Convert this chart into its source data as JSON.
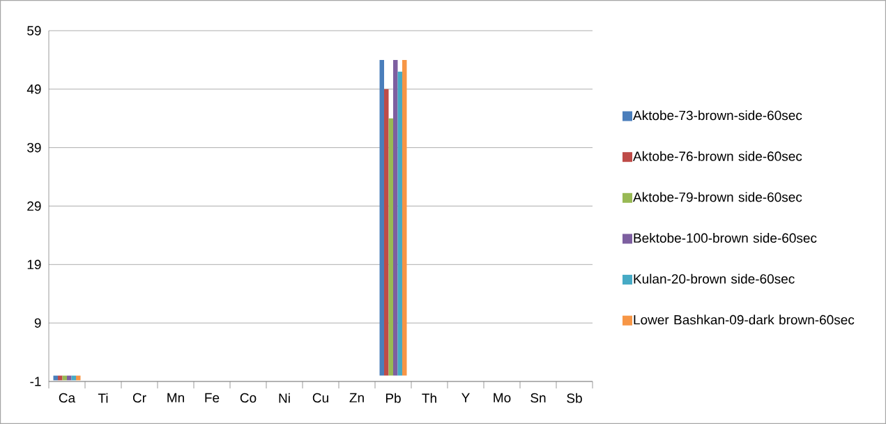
{
  "chart_data": {
    "type": "bar",
    "categories": [
      "Ca",
      "Ti",
      "Cr",
      "Mn",
      "Fe",
      "Co",
      "Ni",
      "Cu",
      "Zn",
      "Pb",
      "Th",
      "Y",
      "Mo",
      "Sn",
      "Sb"
    ],
    "series": [
      {
        "name": "Aktobe-73-brown-side-60sec",
        "color": "#4a7ebb",
        "values": [
          -0.8,
          null,
          null,
          null,
          null,
          null,
          null,
          null,
          null,
          54,
          null,
          null,
          null,
          null,
          null
        ]
      },
      {
        "name": "Aktobe-76-brown side-60sec",
        "color": "#be4b48",
        "values": [
          -0.8,
          null,
          null,
          null,
          null,
          null,
          null,
          null,
          null,
          49,
          null,
          null,
          null,
          null,
          null
        ]
      },
      {
        "name": "Aktobe-79-brown side-60sec",
        "color": "#98b954",
        "values": [
          -0.8,
          null,
          null,
          null,
          null,
          null,
          null,
          null,
          null,
          44,
          null,
          null,
          null,
          null,
          null
        ]
      },
      {
        "name": "Bektobe-100-brown side-60sec",
        "color": "#7d5fa0",
        "values": [
          -0.8,
          null,
          null,
          null,
          null,
          null,
          null,
          null,
          null,
          54,
          null,
          null,
          null,
          null,
          null
        ]
      },
      {
        "name": "Kulan-20-brown side-60sec",
        "color": "#46aac5",
        "values": [
          -0.8,
          null,
          null,
          null,
          null,
          null,
          null,
          null,
          null,
          52,
          null,
          null,
          null,
          null,
          null
        ]
      },
      {
        "name": "Lower Bashkan-09-dark brown-60sec",
        "color": "#f79646",
        "values": [
          -0.8,
          null,
          null,
          null,
          null,
          null,
          null,
          null,
          null,
          54,
          null,
          null,
          null,
          null,
          null
        ]
      }
    ],
    "ylim": [
      -1,
      59
    ],
    "yticks": [
      -1,
      9,
      19,
      29,
      39,
      49,
      59
    ],
    "grid": "y",
    "legend": "right"
  }
}
